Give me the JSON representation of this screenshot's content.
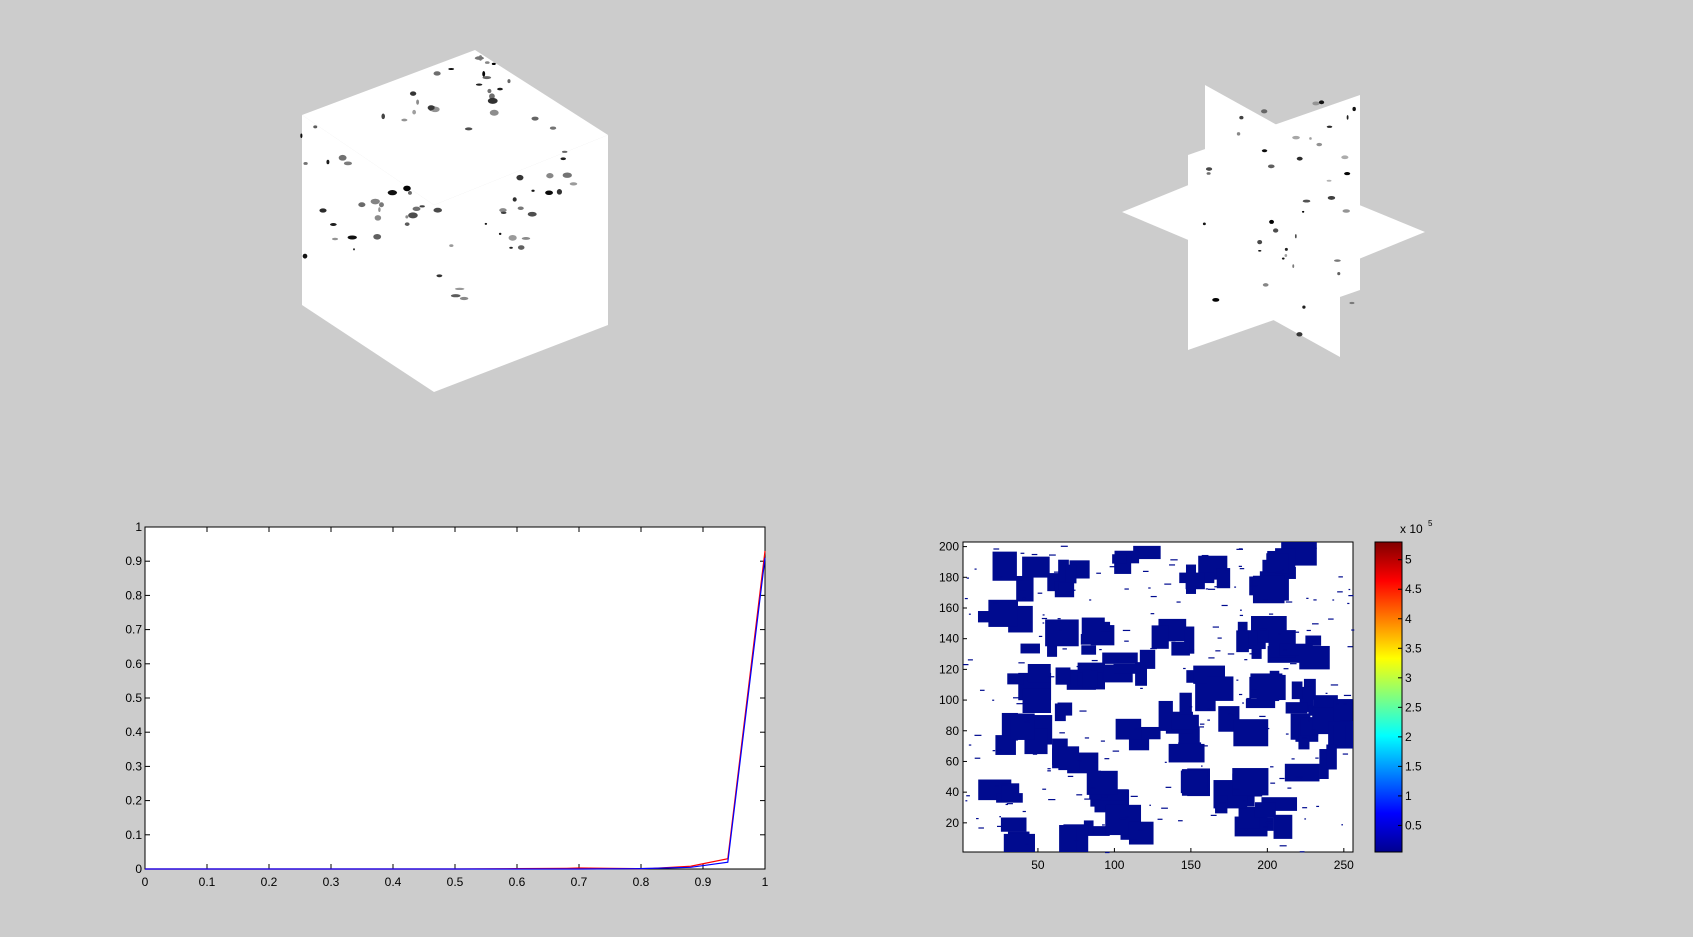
{
  "chart_data": [
    {
      "type": "3d-volume",
      "view": "cube",
      "colormap": "gray-inverted"
    },
    {
      "type": "3d-slices",
      "view": "orthogonal-slices",
      "colormap": "gray-inverted"
    },
    {
      "type": "line",
      "title": "",
      "xlabel": "",
      "ylabel": "",
      "xlim": [
        0,
        1
      ],
      "ylim": [
        0,
        1
      ],
      "xticks": [
        "0",
        "0.1",
        "0.2",
        "0.3",
        "0.4",
        "0.5",
        "0.6",
        "0.7",
        "0.8",
        "0.9",
        "1"
      ],
      "yticks": [
        "0",
        "0.1",
        "0.2",
        "0.3",
        "0.4",
        "0.5",
        "0.6",
        "0.7",
        "0.8",
        "0.9",
        "1"
      ],
      "grid": false,
      "series": [
        {
          "color": "#ff0000",
          "x": [
            0,
            0.5,
            0.6,
            0.68,
            0.7,
            0.75,
            0.8,
            0.82,
            0.88,
            0.94,
            1.0
          ],
          "y": [
            0,
            0,
            0.001,
            0.002,
            0.003,
            0.002,
            0.001,
            0.002,
            0.008,
            0.03,
            0.93
          ]
        },
        {
          "color": "#0000ff",
          "x": [
            0,
            0.5,
            0.6,
            0.7,
            0.8,
            0.88,
            0.94,
            1.0
          ],
          "y": [
            0,
            0,
            0,
            0,
            0.001,
            0.005,
            0.02,
            0.91
          ]
        }
      ]
    },
    {
      "type": "heatmap",
      "title": "",
      "xlim": [
        1,
        256
      ],
      "ylim": [
        1,
        203
      ],
      "xticks": [
        "50",
        "100",
        "150",
        "200",
        "250"
      ],
      "yticks": [
        "20",
        "40",
        "60",
        "80",
        "100",
        "120",
        "140",
        "160",
        "180",
        "200"
      ],
      "colormap": "jet",
      "colorbar": {
        "ticks": [
          "0.5",
          "1",
          "1.5",
          "2",
          "2.5",
          "3",
          "3.5",
          "4",
          "4.5",
          "5"
        ],
        "range": [
          0.05,
          5.3
        ],
        "multiplier": "x 10",
        "exponent": "5"
      }
    }
  ]
}
